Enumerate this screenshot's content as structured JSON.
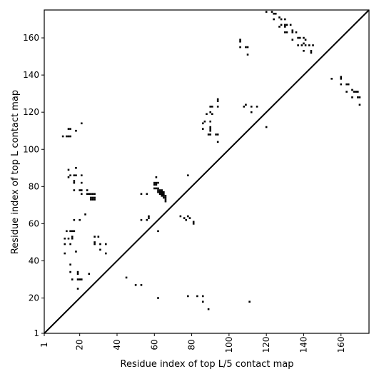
{
  "chart_data": {
    "type": "heatmap",
    "xlabel": "Residue index of top L/5 contact map",
    "ylabel": "Residue index of top L contact map",
    "xlim": [
      1,
      175
    ],
    "ylim": [
      1,
      175
    ],
    "x_ticks": [
      1,
      20,
      40,
      60,
      80,
      100,
      120,
      140,
      160
    ],
    "y_ticks": [
      1,
      20,
      40,
      60,
      80,
      100,
      120,
      140,
      160
    ],
    "x_tick_labels": [
      "1",
      "20",
      "40",
      "60",
      "80",
      "100",
      "120",
      "140",
      "160"
    ],
    "y_tick_labels": [
      "1",
      "20",
      "40",
      "60",
      "80",
      "100",
      "120",
      "140",
      "160"
    ],
    "x_tick_rotation": -90,
    "grid": false,
    "diagonal": true,
    "cell_color": "#000000",
    "contacts": [
      [
        11,
        107
      ],
      [
        13,
        107
      ],
      [
        14,
        107
      ],
      [
        15,
        107
      ],
      [
        14,
        111
      ],
      [
        15,
        111
      ],
      [
        18,
        110
      ],
      [
        21,
        114
      ],
      [
        14,
        85
      ],
      [
        15,
        86
      ],
      [
        14,
        89
      ],
      [
        17,
        86
      ],
      [
        18,
        86
      ],
      [
        17,
        82
      ],
      [
        17,
        83
      ],
      [
        18,
        90
      ],
      [
        21,
        86
      ],
      [
        21,
        82
      ],
      [
        17,
        78
      ],
      [
        20,
        78
      ],
      [
        21,
        76
      ],
      [
        21,
        78
      ],
      [
        24,
        78
      ],
      [
        24,
        76
      ],
      [
        25,
        76
      ],
      [
        26,
        76
      ],
      [
        27,
        76
      ],
      [
        28,
        76
      ],
      [
        26,
        74
      ],
      [
        27,
        74
      ],
      [
        28,
        74
      ],
      [
        26,
        73
      ],
      [
        27,
        73
      ],
      [
        28,
        73
      ],
      [
        23,
        65
      ],
      [
        17,
        62
      ],
      [
        20,
        62
      ],
      [
        13,
        56
      ],
      [
        15,
        56
      ],
      [
        16,
        56
      ],
      [
        17,
        56
      ],
      [
        16,
        53
      ],
      [
        16,
        52
      ],
      [
        14,
        52
      ],
      [
        12,
        52
      ],
      [
        12,
        49
      ],
      [
        15,
        49
      ],
      [
        18,
        45
      ],
      [
        12,
        44
      ],
      [
        28,
        53
      ],
      [
        30,
        53
      ],
      [
        28,
        50
      ],
      [
        28,
        49
      ],
      [
        31,
        49
      ],
      [
        34,
        49
      ],
      [
        31,
        46
      ],
      [
        34,
        44
      ],
      [
        15,
        38
      ],
      [
        15,
        34
      ],
      [
        16,
        30
      ],
      [
        19,
        33
      ],
      [
        19,
        34
      ],
      [
        19,
        30
      ],
      [
        20,
        30
      ],
      [
        21,
        30
      ],
      [
        19,
        25
      ],
      [
        25,
        33
      ],
      [
        45,
        31
      ],
      [
        50,
        27
      ],
      [
        53,
        27
      ],
      [
        53,
        76
      ],
      [
        56,
        76
      ],
      [
        53,
        62
      ],
      [
        56,
        62
      ],
      [
        57,
        63
      ],
      [
        57,
        64
      ],
      [
        60,
        82
      ],
      [
        61,
        82
      ],
      [
        62,
        82
      ],
      [
        60,
        81
      ],
      [
        61,
        81
      ],
      [
        61,
        85
      ],
      [
        60,
        79
      ],
      [
        61,
        79
      ],
      [
        62,
        79
      ],
      [
        62,
        78
      ],
      [
        63,
        78
      ],
      [
        64,
        78
      ],
      [
        62,
        77
      ],
      [
        63,
        77
      ],
      [
        64,
        77
      ],
      [
        65,
        77
      ],
      [
        63,
        76
      ],
      [
        64,
        76
      ],
      [
        65,
        76
      ],
      [
        64,
        75
      ],
      [
        65,
        75
      ],
      [
        66,
        75
      ],
      [
        65,
        74
      ],
      [
        66,
        74
      ],
      [
        66,
        73
      ],
      [
        66,
        72
      ],
      [
        62,
        56
      ],
      [
        62,
        20
      ],
      [
        74,
        64
      ],
      [
        76,
        63
      ],
      [
        77,
        62
      ],
      [
        78,
        64
      ],
      [
        79,
        63
      ],
      [
        78,
        86
      ],
      [
        81,
        61
      ],
      [
        81,
        60
      ],
      [
        78,
        21
      ],
      [
        83,
        21
      ],
      [
        86,
        21
      ],
      [
        86,
        18
      ],
      [
        89,
        14
      ],
      [
        86,
        111
      ],
      [
        86,
        114
      ],
      [
        87,
        115
      ],
      [
        89,
        108
      ],
      [
        90,
        108
      ],
      [
        90,
        110
      ],
      [
        90,
        111
      ],
      [
        90,
        112
      ],
      [
        90,
        115
      ],
      [
        90,
        120
      ],
      [
        91,
        119
      ],
      [
        88,
        119
      ],
      [
        90,
        123
      ],
      [
        91,
        123
      ],
      [
        94,
        123
      ],
      [
        94,
        126
      ],
      [
        94,
        127
      ],
      [
        93,
        108
      ],
      [
        94,
        108
      ],
      [
        94,
        104
      ],
      [
        106,
        159
      ],
      [
        106,
        158
      ],
      [
        106,
        155
      ],
      [
        109,
        155
      ],
      [
        110,
        155
      ],
      [
        110,
        151
      ],
      [
        108,
        123
      ],
      [
        109,
        124
      ],
      [
        112,
        123
      ],
      [
        115,
        123
      ],
      [
        112,
        120
      ],
      [
        111,
        18
      ],
      [
        120,
        112
      ],
      [
        120,
        174
      ],
      [
        123,
        174
      ],
      [
        124,
        173
      ],
      [
        125,
        173
      ],
      [
        124,
        170
      ],
      [
        127,
        171
      ],
      [
        128,
        170
      ],
      [
        128,
        167
      ],
      [
        127,
        166
      ],
      [
        130,
        170
      ],
      [
        130,
        167
      ],
      [
        131,
        167
      ],
      [
        130,
        166
      ],
      [
        130,
        163
      ],
      [
        131,
        163
      ],
      [
        133,
        167
      ],
      [
        134,
        164
      ],
      [
        134,
        163
      ],
      [
        134,
        159
      ],
      [
        136,
        163
      ],
      [
        137,
        160
      ],
      [
        138,
        160
      ],
      [
        137,
        156
      ],
      [
        139,
        156
      ],
      [
        140,
        157
      ],
      [
        140,
        160
      ],
      [
        141,
        159
      ],
      [
        140,
        153
      ],
      [
        141,
        156
      ],
      [
        143,
        156
      ],
      [
        144,
        152
      ],
      [
        144,
        153
      ],
      [
        145,
        156
      ],
      [
        155,
        138
      ],
      [
        160,
        138
      ],
      [
        160,
        135
      ],
      [
        160,
        139
      ],
      [
        163,
        135
      ],
      [
        164,
        135
      ],
      [
        163,
        131
      ],
      [
        166,
        132
      ],
      [
        167,
        131
      ],
      [
        166,
        128
      ],
      [
        168,
        131
      ],
      [
        169,
        131
      ],
      [
        169,
        128
      ],
      [
        170,
        128
      ],
      [
        170,
        124
      ]
    ]
  }
}
